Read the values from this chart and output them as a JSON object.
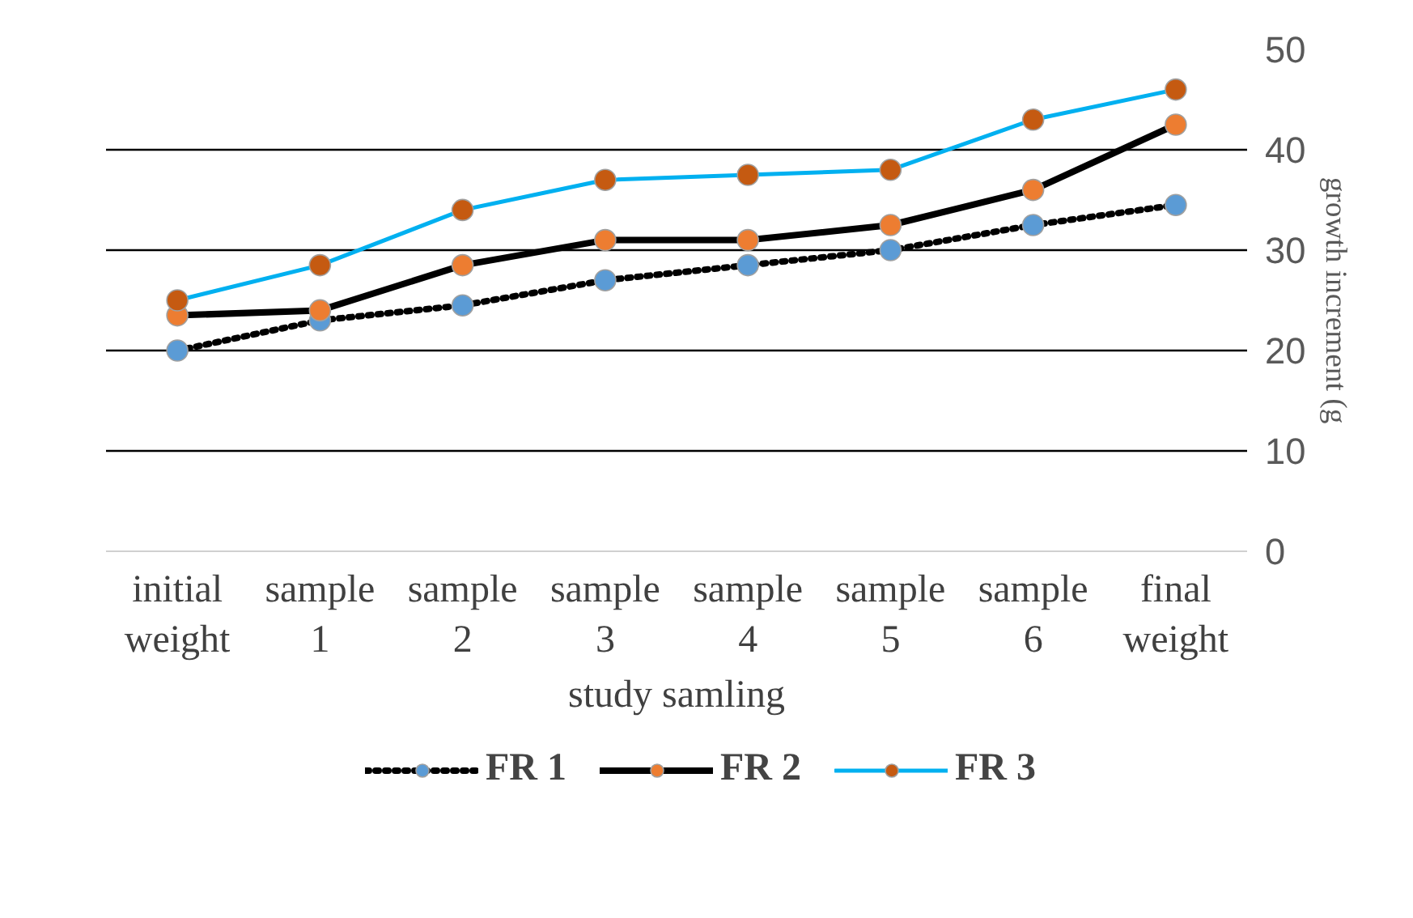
{
  "chart_data": {
    "type": "line",
    "xlabel": "study samling",
    "ylabel": "growth increment (g",
    "categories": [
      "initial weight",
      "sample 1",
      "sample 2",
      "sample 3",
      "sample 4",
      "sample 5",
      "sample 6",
      "final weight"
    ],
    "series": [
      {
        "name": "FR 1",
        "color": "#000000",
        "colors": [
          "#5b9bd5",
          "#5b9bd5",
          "#5b9bd5",
          "#5b9bd5",
          "#5b9bd5",
          "#5b9bd5",
          "#5b9bd5",
          "#5b9bd5"
        ],
        "line_style": "dotted",
        "values": [
          20,
          23,
          24.5,
          27,
          28.5,
          30,
          32.5,
          34.5
        ]
      },
      {
        "name": "FR 2",
        "color": "#000000",
        "colors": [
          "#ed7d31",
          "#ed7d31",
          "#ed7d31",
          "#ed7d31",
          "#ed7d31",
          "#ed7d31",
          "#ed7d31",
          "#ed7d31"
        ],
        "line_style": "solid",
        "values": [
          23.5,
          24,
          28.5,
          31,
          31,
          32.5,
          36,
          42.5
        ]
      },
      {
        "name": "FR 3",
        "color": "#00b0f0",
        "colors": [
          "#c55a11",
          "#c55a11",
          "#c55a11",
          "#c55a11",
          "#c55a11",
          "#c55a11",
          "#c55a11",
          "#c55a11"
        ],
        "line_style": "solid",
        "values": [
          25,
          28.5,
          34,
          37,
          37.5,
          38,
          43,
          46
        ]
      }
    ],
    "ylim": [
      0,
      50
    ],
    "yticks": [
      0,
      10,
      20,
      30,
      40,
      50
    ],
    "grid": "y",
    "marker": "circle",
    "legend": "bottom"
  }
}
